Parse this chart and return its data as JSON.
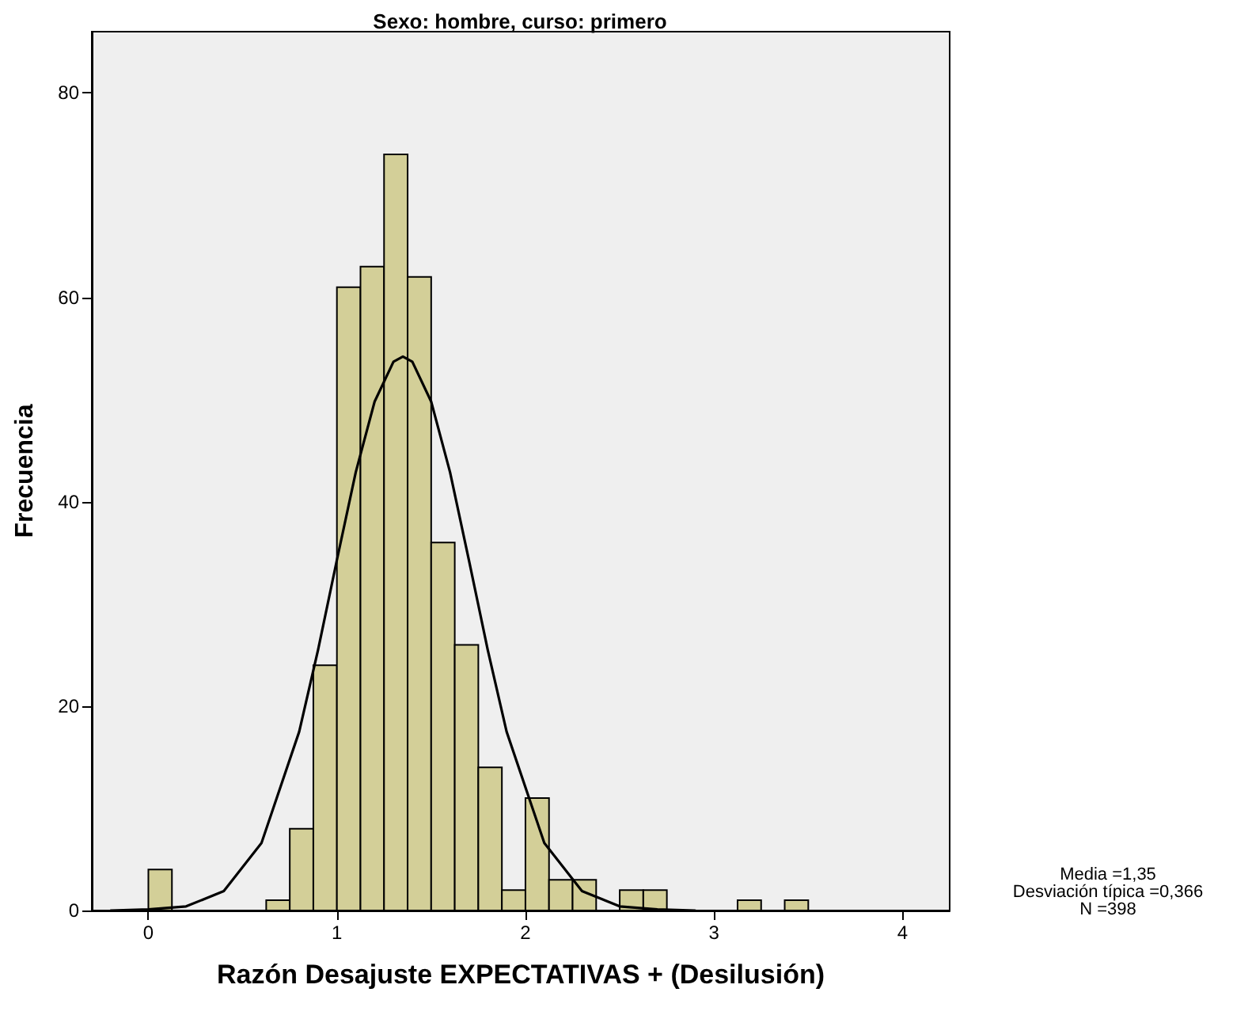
{
  "chart_data": {
    "type": "histogram",
    "title": "Sexo: hombre, curso: primero",
    "xlabel": "Razón Desajuste EXPECTATIVAS + (Desilusión)",
    "ylabel": "Frecuencia",
    "bins": [
      0,
      0.125,
      0.25,
      0.375,
      0.5,
      0.625,
      0.75,
      0.875,
      1,
      1.125,
      1.25,
      1.375,
      1.5,
      1.625,
      1.75,
      1.875,
      2,
      2.125,
      2.25,
      2.375,
      2.5,
      2.625,
      2.75,
      2.875,
      3,
      3.125,
      3.25,
      3.375,
      3.5
    ],
    "values": [
      4,
      0,
      0,
      0,
      0,
      1,
      8,
      24,
      61,
      63,
      74,
      62,
      36,
      26,
      14,
      2,
      11,
      3,
      3,
      0,
      2,
      2,
      0,
      0,
      0,
      1,
      0,
      1
    ],
    "color": "#d3cf98",
    "series": [
      {
        "type": "line",
        "color": "#000000",
        "x": [
          -0.2,
          0,
          0.2,
          0.4,
          0.6,
          0.8,
          0.9,
          1,
          1.1,
          1.2,
          1.3,
          1.35,
          1.4,
          1.5,
          1.6,
          1.7,
          1.8,
          1.9,
          2.1,
          2.3,
          2.5,
          2.7,
          2.9
        ],
        "values": [
          0,
          0.1,
          0.4,
          1.9,
          6.6,
          17.5,
          25.5,
          34.3,
          42.9,
          49.8,
          53.7,
          54.2,
          53.7,
          49.8,
          42.9,
          34.3,
          25.5,
          17.5,
          6.6,
          1.9,
          0.4,
          0.1,
          0
        ]
      }
    ],
    "xlim": [
      -0.3,
      4.25
    ],
    "xticks": [
      0,
      1,
      2,
      3,
      4
    ],
    "ylim": [
      0,
      86
    ],
    "yticks": [
      0,
      20,
      40,
      60,
      80
    ],
    "grid": false,
    "marker": "none",
    "line_style": "solid",
    "annotations": [
      "Media =1,35",
      "Desviación típica =0,366",
      "N =398"
    ]
  }
}
